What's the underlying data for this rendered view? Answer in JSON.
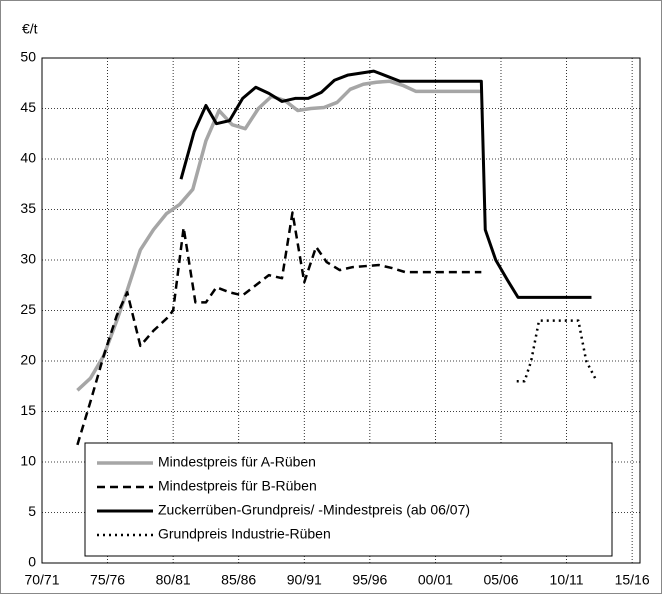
{
  "chart_data": {
    "type": "line",
    "y_label": "€/t",
    "ylim": [
      0,
      50
    ],
    "yticks": [
      0,
      5,
      10,
      15,
      20,
      25,
      30,
      35,
      40,
      45,
      50
    ],
    "xlim": [
      1970,
      2015.6
    ],
    "xticks": [
      {
        "value": 1970,
        "label": "70/71"
      },
      {
        "value": 1975,
        "label": "75/76"
      },
      {
        "value": 1980,
        "label": "80/81"
      },
      {
        "value": 1985,
        "label": "85/86"
      },
      {
        "value": 1990,
        "label": "90/91"
      },
      {
        "value": 1995,
        "label": "95/96"
      },
      {
        "value": 2000,
        "label": "00/01"
      },
      {
        "value": 2005,
        "label": "05/06"
      },
      {
        "value": 2010,
        "label": "10/11"
      },
      {
        "value": 2015,
        "label": "15/16"
      }
    ],
    "grid": true,
    "legend": "bottom",
    "series": [
      {
        "name": "Mindestpreis für A-Rüben",
        "color": "#a6a6a6",
        "style": "solid",
        "x": [
          1972.7,
          1973.7,
          1974.7,
          1975.7,
          1976.5,
          1977.5,
          1978.5,
          1979.5,
          1980.5,
          1981.5,
          1982.5,
          1983.5,
          1984.5,
          1985.5,
          1986.5,
          1987.5,
          1988.5,
          1989.5,
          1990.5,
          1991.5,
          1992.5,
          1993.5,
          1994.5,
          1995.5,
          1996.5,
          1997.5,
          1998.5,
          2003.5
        ],
        "values": [
          17.1,
          18.3,
          20.5,
          24,
          27,
          31,
          33,
          34.6,
          35.5,
          37,
          41.8,
          44.8,
          43.4,
          43,
          45,
          46.2,
          45.8,
          44.8,
          45,
          45.1,
          45.6,
          46.9,
          47.4,
          47.6,
          47.7,
          47.3,
          46.7,
          46.7
        ]
      },
      {
        "name": "Mindestpreis für B-Rüben",
        "color": "#000000",
        "style": "dashed",
        "x": [
          1972.7,
          1973.7,
          1974.7,
          1975.7,
          1976.5,
          1977.5,
          1978.5,
          1979.5,
          1980.0,
          1980.8,
          1981.7,
          1982.5,
          1983.3,
          1984.3,
          1985.3,
          1986.3,
          1987.3,
          1988.3,
          1989.1,
          1990.0,
          1990.9,
          1991.7,
          1992.7,
          1993.7,
          1994.7,
          1995.7,
          1996.7,
          1997.7,
          2003.5
        ],
        "values": [
          11.7,
          16,
          20.5,
          24.5,
          26.8,
          21.5,
          23,
          24.2,
          25,
          33.2,
          25.8,
          25.8,
          27.3,
          26.8,
          26.5,
          27.5,
          28.5,
          28.2,
          34.7,
          27.8,
          31.3,
          29.8,
          29,
          29.3,
          29.4,
          29.5,
          29.2,
          28.8,
          28.8
        ]
      },
      {
        "name": "Zuckerrüben-Grundpreis/ -Mindestpreis (ab 06/07)",
        "color": "#000000",
        "style": "solid",
        "x": [
          1980.6,
          1981.6,
          1982.5,
          1983.3,
          1984.3,
          1985.3,
          1986.3,
          1987.3,
          1988.3,
          1989.3,
          1990.3,
          1991.3,
          1992.3,
          1993.3,
          1994.3,
          1995.3,
          1996.3,
          1997.3,
          2003.5,
          2003.8,
          2004.6,
          2005.5,
          2006.3,
          2011.9
        ],
        "values": [
          38,
          42.7,
          45.3,
          43.5,
          43.8,
          46,
          47.1,
          46.5,
          45.7,
          46,
          46,
          46.6,
          47.8,
          48.3,
          48.5,
          48.7,
          48.2,
          47.7,
          47.7,
          33,
          30,
          28,
          26.3,
          26.3
        ]
      },
      {
        "name": "Grundpreis Industrie-Rüben",
        "color": "#000000",
        "style": "dotted",
        "x": [
          2006.2,
          2006.8,
          2007.3,
          2007.9,
          2010.9,
          2011.5,
          2012.3
        ],
        "values": [
          18,
          18,
          20,
          24,
          24,
          20,
          18
        ]
      }
    ]
  }
}
